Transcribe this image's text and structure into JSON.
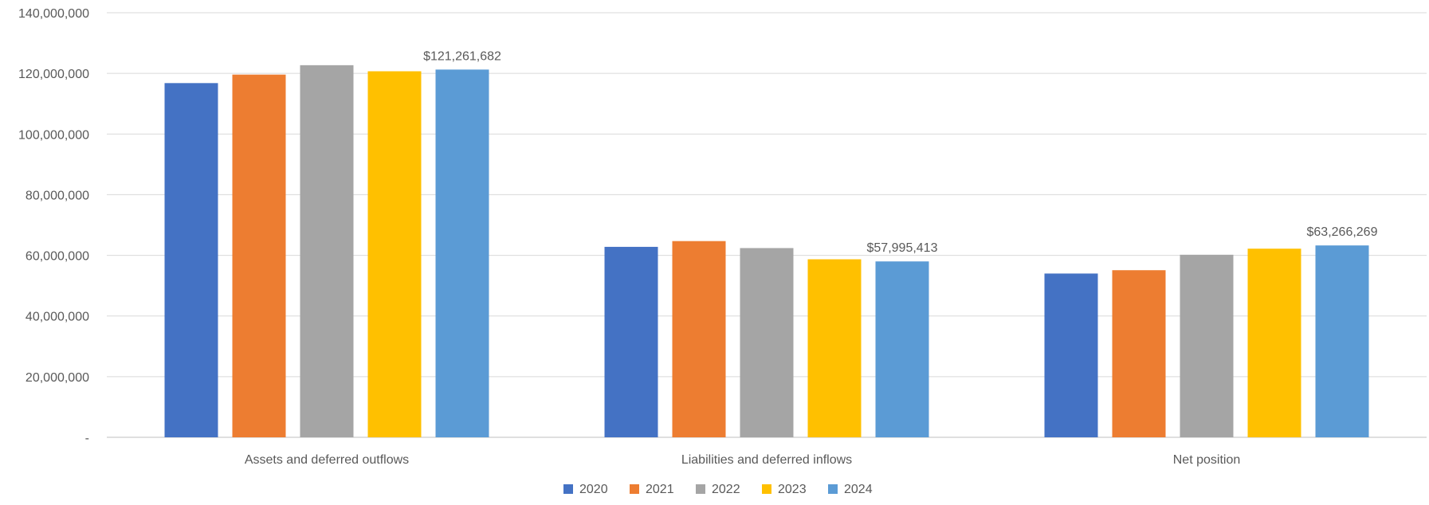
{
  "chart_data": {
    "type": "bar",
    "title": "",
    "xlabel": "",
    "ylabel": "",
    "categories": [
      "Assets and deferred outflows",
      "Liabilities and deferred inflows",
      "Net position"
    ],
    "series": [
      {
        "name": "2020",
        "color": "#4472C4",
        "values": [
          116800000,
          62800000,
          54000000
        ]
      },
      {
        "name": "2021",
        "color": "#ED7D31",
        "values": [
          119600000,
          64700000,
          55100000
        ]
      },
      {
        "name": "2022",
        "color": "#A5A5A5",
        "values": [
          122700000,
          62400000,
          60200000
        ]
      },
      {
        "name": "2023",
        "color": "#FFC000",
        "values": [
          120700000,
          58700000,
          62200000
        ]
      },
      {
        "name": "2024",
        "color": "#5B9BD5",
        "values": [
          121261682,
          57995413,
          63266269
        ]
      }
    ],
    "data_labels": [
      {
        "series": "2024",
        "category": "Assets and deferred outflows",
        "text": "$121,261,682"
      },
      {
        "series": "2024",
        "category": "Liabilities and deferred inflows",
        "text": "$57,995,413"
      },
      {
        "series": "2024",
        "category": "Net position",
        "text": "$63,266,269"
      }
    ],
    "ylim": [
      0,
      140000000
    ],
    "y_ticks": [
      0,
      20000000,
      40000000,
      60000000,
      80000000,
      100000000,
      120000000,
      140000000
    ],
    "y_tick_labels": [
      "-",
      "20,000,000",
      "40,000,000",
      "60,000,000",
      "80,000,000",
      "100,000,000",
      "120,000,000",
      "140,000,000"
    ],
    "grid": true,
    "legend_position": "bottom"
  }
}
